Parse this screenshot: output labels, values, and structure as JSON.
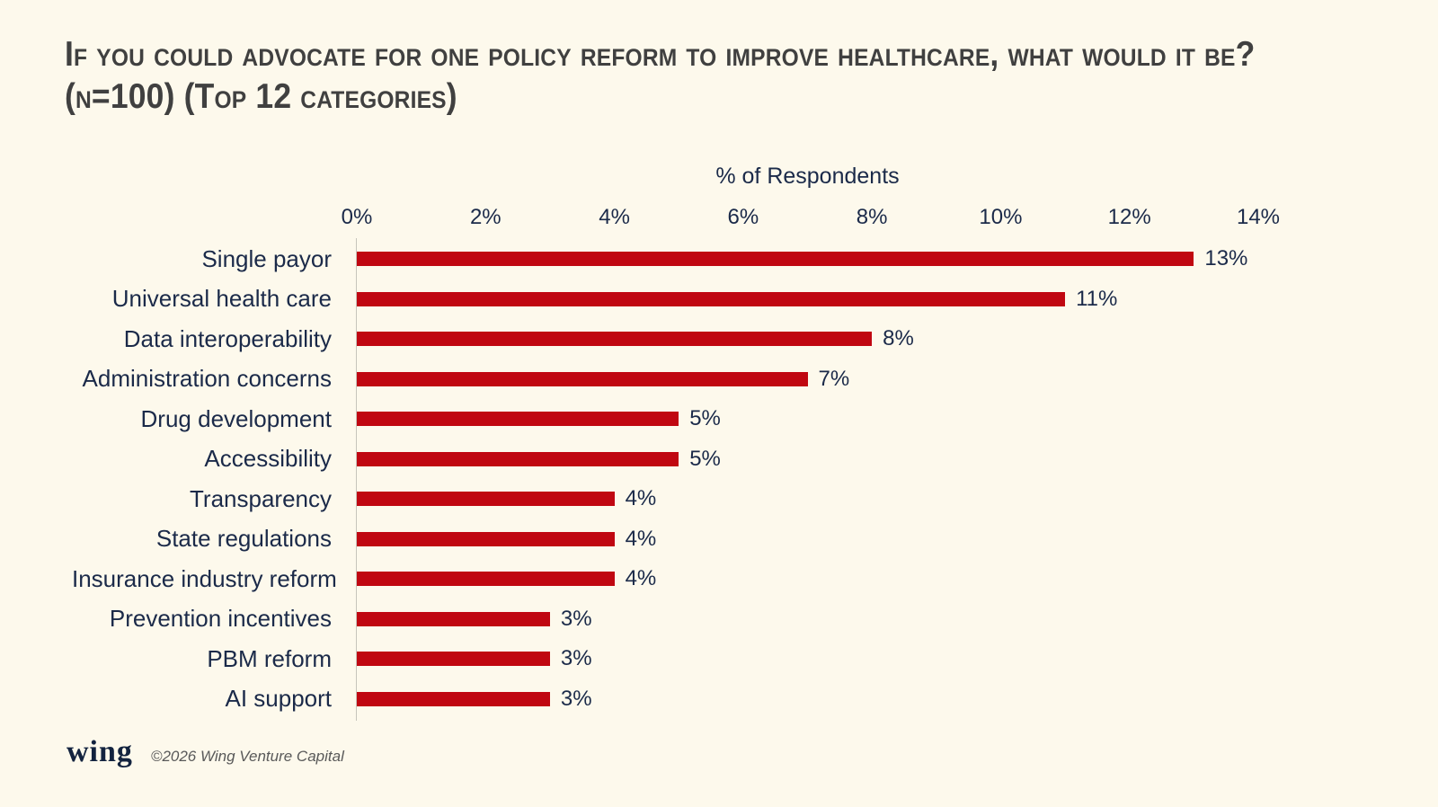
{
  "page": {
    "background": "#FDF9EC",
    "title_color": "#404040",
    "text_color": "#1B2A49"
  },
  "title": "If you could advocate for one policy reform to improve healthcare, what would it be? (n=100) (Top 12 categories)",
  "chart_data": {
    "type": "bar",
    "orientation": "horizontal",
    "axis_title": "% of Respondents",
    "categories": [
      "Single payor",
      "Universal health care",
      "Data interoperability",
      "Administration concerns",
      "Drug development",
      "Accessibility",
      "Transparency",
      "State regulations",
      "Insurance industry reform",
      "Prevention incentives",
      "PBM reform",
      "AI support"
    ],
    "values": [
      13,
      11,
      8,
      7,
      5,
      5,
      4,
      4,
      4,
      3,
      3,
      3
    ],
    "value_labels": [
      "13%",
      "11%",
      "8%",
      "7%",
      "5%",
      "5%",
      "4%",
      "4%",
      "4%",
      "3%",
      "3%",
      "3%"
    ],
    "tick_labels": [
      "0%",
      "2%",
      "4%",
      "6%",
      "8%",
      "10%",
      "12%",
      "14%"
    ],
    "xlim": [
      0,
      14
    ],
    "grid": false,
    "legend": "none",
    "bar_color": "#C00711"
  },
  "footer": {
    "logo_text": "wing",
    "copyright": "©2026 Wing Venture Capital"
  }
}
